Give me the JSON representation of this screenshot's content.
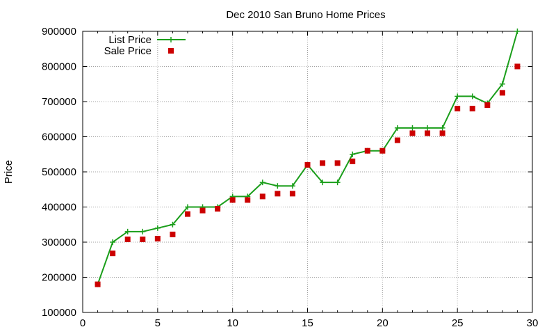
{
  "chart_data": {
    "type": "line",
    "title": "Dec 2010 San Bruno Home Prices",
    "xlabel": "",
    "ylabel": "Price",
    "xlim": [
      0,
      30
    ],
    "ylim": [
      100000,
      900000
    ],
    "x_ticks": [
      0,
      5,
      10,
      15,
      20,
      25,
      30
    ],
    "y_ticks": [
      100000,
      200000,
      300000,
      400000,
      500000,
      600000,
      700000,
      800000,
      900000
    ],
    "grid": true,
    "legend_position": "top-left",
    "series": [
      {
        "name": "List Price",
        "style": "line-with-plus-markers",
        "color": "#1a9e1a",
        "x": [
          1,
          2,
          3,
          4,
          5,
          6,
          7,
          8,
          9,
          10,
          11,
          12,
          13,
          14,
          15,
          16,
          17,
          18,
          19,
          20,
          21,
          22,
          23,
          24,
          25,
          26,
          27,
          28,
          29
        ],
        "values": [
          180000,
          300000,
          330000,
          330000,
          340000,
          350000,
          400000,
          400000,
          400000,
          430000,
          430000,
          470000,
          460000,
          460000,
          520000,
          470000,
          470000,
          550000,
          560000,
          560000,
          625000,
          625000,
          625000,
          625000,
          715000,
          715000,
          695000,
          750000,
          900000
        ]
      },
      {
        "name": "Sale Price",
        "style": "square-markers",
        "color": "#cc0000",
        "x": [
          1,
          2,
          3,
          4,
          5,
          6,
          7,
          8,
          9,
          10,
          11,
          12,
          13,
          14,
          15,
          16,
          17,
          18,
          19,
          20,
          21,
          22,
          23,
          24,
          25,
          26,
          27,
          28,
          29
        ],
        "values": [
          180000,
          268000,
          308000,
          308000,
          310000,
          322000,
          380000,
          390000,
          395000,
          420000,
          420000,
          430000,
          438000,
          438000,
          520000,
          525000,
          525000,
          530000,
          560000,
          560000,
          590000,
          610000,
          610000,
          610000,
          680000,
          680000,
          690000,
          725000,
          800000
        ]
      }
    ]
  }
}
